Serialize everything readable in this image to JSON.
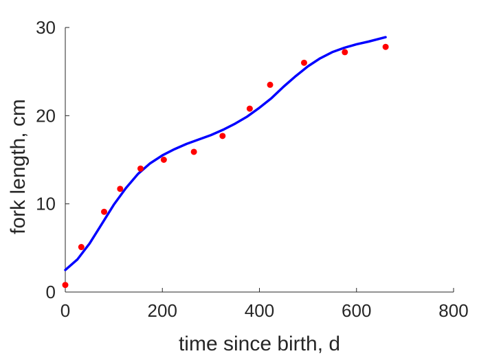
{
  "chart_data": {
    "type": "scatter",
    "title": "",
    "xlabel": "time since birth, d",
    "ylabel": "fork length, cm",
    "xlim": [
      0,
      800
    ],
    "ylim": [
      0,
      30
    ],
    "xticks": [
      0,
      200,
      400,
      600,
      800
    ],
    "yticks": [
      0,
      10,
      20,
      30
    ],
    "grid": false,
    "legend": "none",
    "series": [
      {
        "kind": "points",
        "color": "#ff0000",
        "x": [
          0,
          33,
          80,
          113,
          155,
          203,
          265,
          324,
          380,
          422,
          492,
          576,
          660
        ],
        "y": [
          0.8,
          5.1,
          9.1,
          11.7,
          14.0,
          15.0,
          15.9,
          17.7,
          20.8,
          23.5,
          26.0,
          27.2,
          27.8
        ]
      },
      {
        "kind": "line",
        "color": "#0000ff",
        "x": [
          0,
          25,
          50,
          75,
          100,
          125,
          150,
          175,
          200,
          225,
          250,
          275,
          300,
          325,
          350,
          375,
          400,
          425,
          450,
          475,
          500,
          525,
          550,
          575,
          600,
          625,
          660
        ],
        "y": [
          2.5,
          3.7,
          5.5,
          7.7,
          9.9,
          11.8,
          13.4,
          14.6,
          15.5,
          16.2,
          16.8,
          17.3,
          17.8,
          18.4,
          19.1,
          19.9,
          20.9,
          22.0,
          23.3,
          24.5,
          25.6,
          26.5,
          27.2,
          27.7,
          28.1,
          28.4,
          28.9
        ]
      }
    ]
  }
}
